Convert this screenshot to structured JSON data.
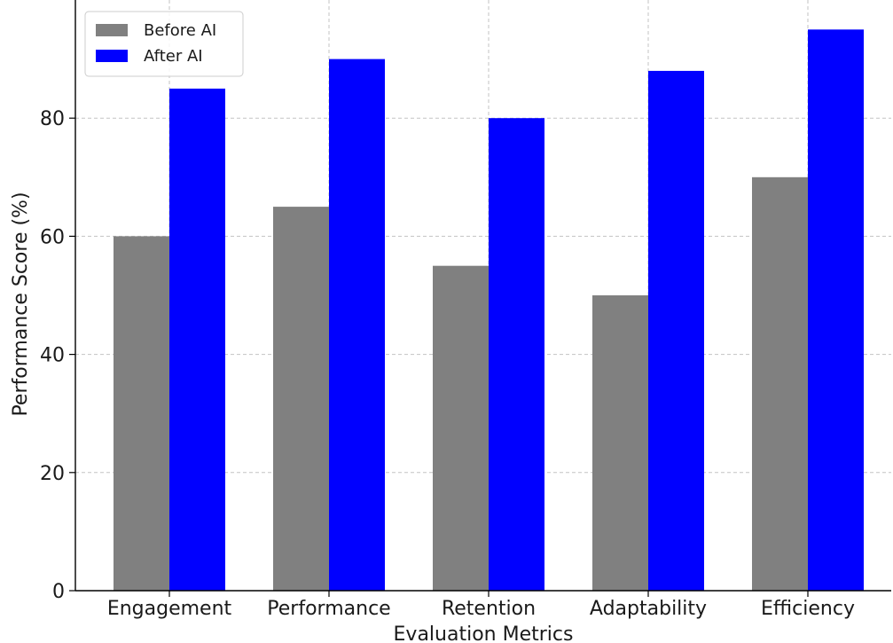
{
  "chart_data": {
    "type": "bar",
    "title": "",
    "xlabel": "Evaluation Metrics",
    "ylabel": "Performance Score (%)",
    "categories": [
      "Engagement",
      "Performance",
      "Retention",
      "Adaptability",
      "Efficiency"
    ],
    "series": [
      {
        "name": "Before AI",
        "values": [
          60,
          65,
          55,
          50,
          70
        ],
        "color": "#808080"
      },
      {
        "name": "After AI",
        "values": [
          85,
          90,
          80,
          88,
          95
        ],
        "color": "#0000ff"
      }
    ],
    "yticks": [
      0,
      20,
      40,
      60,
      80
    ],
    "ylim": [
      0,
      100
    ],
    "grid": true,
    "legend_position": "top-left"
  }
}
